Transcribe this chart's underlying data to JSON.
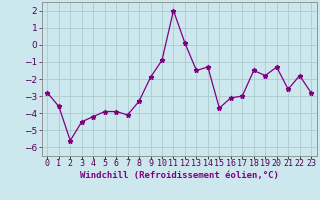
{
  "x": [
    0,
    1,
    2,
    3,
    4,
    5,
    6,
    7,
    8,
    9,
    10,
    11,
    12,
    13,
    14,
    15,
    16,
    17,
    18,
    19,
    20,
    21,
    22,
    23
  ],
  "y": [
    -2.8,
    -3.6,
    -5.6,
    -4.5,
    -4.2,
    -3.9,
    -3.9,
    -4.1,
    -3.3,
    -1.9,
    -0.9,
    2.0,
    0.1,
    -1.5,
    -1.3,
    -3.7,
    -3.1,
    -3.0,
    -1.5,
    -1.8,
    -1.3,
    -2.6,
    -1.8,
    -2.8
  ],
  "line_color": "#800080",
  "marker": "*",
  "marker_size": 3.5,
  "bg_color": "#cce8ee",
  "grid_color": "#aacccc",
  "xlabel": "Windchill (Refroidissement éolien,°C)",
  "ylabel_ticks": [
    2,
    1,
    0,
    -1,
    -2,
    -3,
    -4,
    -5,
    -6
  ],
  "ylim": [
    -6.5,
    2.5
  ],
  "xlim": [
    -0.5,
    23.5
  ],
  "xlabel_fontsize": 6.5,
  "tick_fontsize": 6,
  "ytick_fontsize": 6.5
}
